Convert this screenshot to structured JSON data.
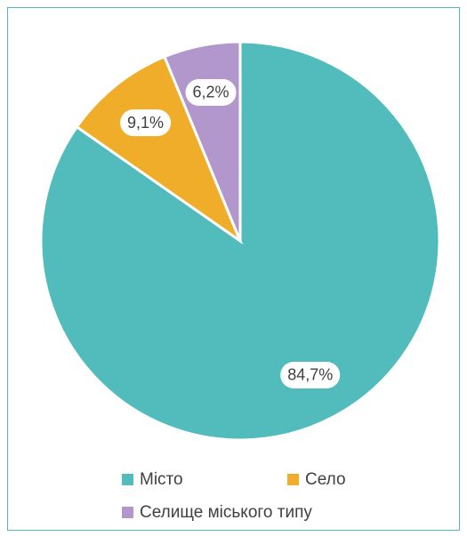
{
  "chart_data": {
    "type": "pie",
    "categories": [
      "Місто",
      "Село",
      "Селище міського типу"
    ],
    "values": [
      84.7,
      9.1,
      6.2
    ],
    "value_labels": [
      "84,7%",
      "9,1%",
      "6,2%"
    ],
    "colors": [
      "#52bcbc",
      "#f0ad2a",
      "#b197cc"
    ]
  }
}
